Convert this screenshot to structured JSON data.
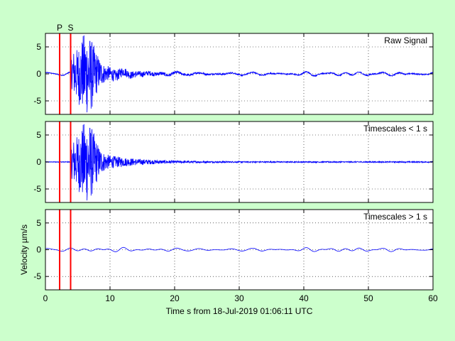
{
  "chart_data": {
    "type": "line",
    "figure_background": "#ccffcc",
    "phase_markers": [
      {
        "label": "P",
        "x": 2.2,
        "color": "#ff0000"
      },
      {
        "label": "S",
        "x": 3.9,
        "color": "#ff0000"
      }
    ],
    "xlim": [
      0,
      60
    ],
    "xticks": [
      0,
      10,
      20,
      30,
      40,
      50,
      60
    ],
    "xlabel": "Time s from 18-Jul-2019 01:06:11 UTC",
    "ylabel": "Velocity µm/s",
    "ylim": [
      -7.5,
      7.5
    ],
    "yticks": [
      -5,
      0,
      5
    ],
    "grid": "dotted",
    "series_color": "#0000ff",
    "panels": [
      {
        "label": "Raw Signal",
        "max_amplitude": 6.8,
        "long_period_amplitude": 0.45
      },
      {
        "label": "Timescales < 1 s",
        "max_amplitude": 6.8,
        "long_period_amplitude": 0.05
      },
      {
        "label": "Timescales > 1 s",
        "max_amplitude": 0.6,
        "long_period_amplitude": 0.45
      }
    ]
  }
}
